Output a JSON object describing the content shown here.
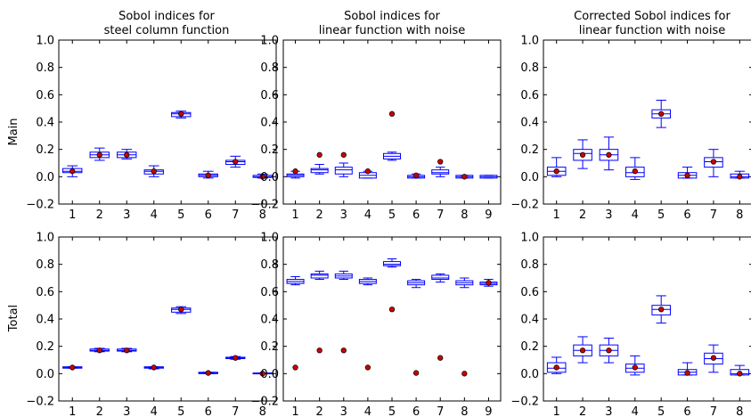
{
  "row_labels": [
    "Main",
    "Total"
  ],
  "titles": [
    [
      "Sobol indices for",
      "steel column function"
    ],
    [
      "Sobol indices for",
      "linear function with noise"
    ],
    [
      "Corrected Sobol indices for",
      "linear function with noise"
    ]
  ],
  "colors": {
    "box": "#0000ff",
    "dot": "#cc0000",
    "axis": "#000000"
  },
  "chart_data": [
    {
      "type": "box",
      "row": "Main",
      "title": "Sobol indices for steel column function",
      "ylim": [
        -0.2,
        1.0
      ],
      "yticks": [
        "−0.2",
        "0.0",
        "0.2",
        "0.4",
        "0.6",
        "0.8",
        "1.0"
      ],
      "categories": [
        "1",
        "2",
        "3",
        "4",
        "5",
        "6",
        "7",
        "8"
      ],
      "boxes": [
        {
          "q1": 0.03,
          "q3": 0.06,
          "wlo": 0.0,
          "whi": 0.08,
          "med": 0.04
        },
        {
          "q1": 0.14,
          "q3": 0.18,
          "wlo": 0.12,
          "whi": 0.21,
          "med": 0.16
        },
        {
          "q1": 0.14,
          "q3": 0.18,
          "wlo": 0.13,
          "whi": 0.2,
          "med": 0.16
        },
        {
          "q1": 0.02,
          "q3": 0.05,
          "wlo": 0.0,
          "whi": 0.08,
          "med": 0.04
        },
        {
          "q1": 0.44,
          "q3": 0.47,
          "wlo": 0.43,
          "whi": 0.48,
          "med": 0.46
        },
        {
          "q1": 0.0,
          "q3": 0.02,
          "wlo": -0.01,
          "whi": 0.04,
          "med": 0.01
        },
        {
          "q1": 0.09,
          "q3": 0.12,
          "wlo": 0.07,
          "whi": 0.15,
          "med": 0.11
        },
        {
          "q1": -0.005,
          "q3": 0.01,
          "wlo": -0.01,
          "whi": 0.02,
          "med": 0.0
        }
      ],
      "points": [
        0.04,
        0.16,
        0.16,
        0.04,
        0.46,
        0.01,
        0.11,
        0.0
      ]
    },
    {
      "type": "box",
      "row": "Main",
      "title": "Sobol indices for linear function with noise",
      "ylim": [
        -0.2,
        1.0
      ],
      "yticks": [
        "−0.2",
        "0.0",
        "0.2",
        "0.4",
        "0.6",
        "0.8",
        "1.0"
      ],
      "categories": [
        "1",
        "2",
        "3",
        "4",
        "5",
        "6",
        "7",
        "8",
        "9"
      ],
      "boxes": [
        {
          "q1": 0.0,
          "q3": 0.02,
          "wlo": -0.01,
          "whi": 0.04,
          "med": 0.01
        },
        {
          "q1": 0.03,
          "q3": 0.06,
          "wlo": 0.02,
          "whi": 0.09,
          "med": 0.05
        },
        {
          "q1": 0.02,
          "q3": 0.07,
          "wlo": 0.0,
          "whi": 0.1,
          "med": 0.05
        },
        {
          "q1": -0.01,
          "q3": 0.03,
          "wlo": -0.01,
          "whi": 0.04,
          "med": 0.01
        },
        {
          "q1": 0.13,
          "q3": 0.17,
          "wlo": 0.12,
          "whi": 0.18,
          "med": 0.15
        },
        {
          "q1": -0.01,
          "q3": 0.01,
          "wlo": -0.01,
          "whi": 0.02,
          "med": 0.0
        },
        {
          "q1": 0.02,
          "q3": 0.05,
          "wlo": 0.0,
          "whi": 0.07,
          "med": 0.03
        },
        {
          "q1": -0.01,
          "q3": 0.01,
          "wlo": -0.01,
          "whi": 0.01,
          "med": 0.0
        },
        {
          "q1": -0.01,
          "q3": 0.01,
          "wlo": -0.01,
          "whi": 0.01,
          "med": 0.0
        }
      ],
      "points": [
        0.04,
        0.16,
        0.16,
        0.04,
        0.46,
        0.01,
        0.11,
        0.0,
        null
      ]
    },
    {
      "type": "box",
      "row": "Main",
      "title": "Corrected Sobol indices for linear function with noise",
      "ylim": [
        -0.2,
        1.0
      ],
      "yticks": [
        "−0.2",
        "0.0",
        "0.2",
        "0.4",
        "0.6",
        "0.8",
        "1.0"
      ],
      "categories": [
        "1",
        "2",
        "3",
        "4",
        "5",
        "6",
        "7",
        "8"
      ],
      "boxes": [
        {
          "q1": 0.01,
          "q3": 0.07,
          "wlo": 0.0,
          "whi": 0.14,
          "med": 0.04
        },
        {
          "q1": 0.12,
          "q3": 0.2,
          "wlo": 0.06,
          "whi": 0.27,
          "med": 0.17
        },
        {
          "q1": 0.12,
          "q3": 0.2,
          "wlo": 0.05,
          "whi": 0.29,
          "med": 0.16
        },
        {
          "q1": 0.0,
          "q3": 0.07,
          "wlo": -0.02,
          "whi": 0.14,
          "med": 0.03
        },
        {
          "q1": 0.43,
          "q3": 0.49,
          "wlo": 0.36,
          "whi": 0.56,
          "med": 0.46
        },
        {
          "q1": -0.01,
          "q3": 0.03,
          "wlo": -0.01,
          "whi": 0.07,
          "med": 0.01
        },
        {
          "q1": 0.07,
          "q3": 0.14,
          "wlo": 0.0,
          "whi": 0.2,
          "med": 0.11
        },
        {
          "q1": -0.01,
          "q3": 0.02,
          "wlo": -0.01,
          "whi": 0.04,
          "med": 0.0
        }
      ],
      "points": [
        0.04,
        0.16,
        0.16,
        0.04,
        0.46,
        0.01,
        0.11,
        0.0
      ]
    },
    {
      "type": "box",
      "row": "Total",
      "title": "",
      "ylim": [
        -0.2,
        1.0
      ],
      "yticks": [
        "−0.2",
        "0.0",
        "0.2",
        "0.4",
        "0.6",
        "0.8",
        "1.0"
      ],
      "categories": [
        "1",
        "2",
        "3",
        "4",
        "5",
        "6",
        "7",
        "8"
      ],
      "boxes": [
        {
          "q1": 0.04,
          "q3": 0.05,
          "wlo": 0.04,
          "whi": 0.05,
          "med": 0.045
        },
        {
          "q1": 0.165,
          "q3": 0.18,
          "wlo": 0.16,
          "whi": 0.185,
          "med": 0.17
        },
        {
          "q1": 0.165,
          "q3": 0.18,
          "wlo": 0.16,
          "whi": 0.185,
          "med": 0.17
        },
        {
          "q1": 0.04,
          "q3": 0.05,
          "wlo": 0.035,
          "whi": 0.05,
          "med": 0.045
        },
        {
          "q1": 0.45,
          "q3": 0.48,
          "wlo": 0.44,
          "whi": 0.49,
          "med": 0.47
        },
        {
          "q1": 0.0,
          "q3": 0.01,
          "wlo": 0.0,
          "whi": 0.01,
          "med": 0.005
        },
        {
          "q1": 0.11,
          "q3": 0.12,
          "wlo": 0.105,
          "whi": 0.125,
          "med": 0.115
        },
        {
          "q1": 0.0,
          "q3": 0.005,
          "wlo": 0.0,
          "whi": 0.005,
          "med": 0.0
        }
      ],
      "points": [
        0.045,
        0.17,
        0.17,
        0.045,
        0.47,
        0.005,
        0.115,
        0.0
      ]
    },
    {
      "type": "box",
      "row": "Total",
      "title": "",
      "ylim": [
        -0.2,
        1.0
      ],
      "yticks": [
        "−0.2",
        "0.0",
        "0.2",
        "0.4",
        "0.6",
        "0.8",
        "1.0"
      ],
      "categories": [
        "1",
        "2",
        "3",
        "4",
        "5",
        "6",
        "7",
        "8",
        "9"
      ],
      "boxes": [
        {
          "q1": 0.66,
          "q3": 0.69,
          "wlo": 0.65,
          "whi": 0.71,
          "med": 0.675
        },
        {
          "q1": 0.7,
          "q3": 0.73,
          "wlo": 0.69,
          "whi": 0.75,
          "med": 0.72
        },
        {
          "q1": 0.7,
          "q3": 0.73,
          "wlo": 0.69,
          "whi": 0.75,
          "med": 0.715
        },
        {
          "q1": 0.66,
          "q3": 0.69,
          "wlo": 0.65,
          "whi": 0.7,
          "med": 0.675
        },
        {
          "q1": 0.79,
          "q3": 0.82,
          "wlo": 0.78,
          "whi": 0.84,
          "med": 0.8
        },
        {
          "q1": 0.65,
          "q3": 0.68,
          "wlo": 0.63,
          "whi": 0.69,
          "med": 0.665
        },
        {
          "q1": 0.69,
          "q3": 0.72,
          "wlo": 0.67,
          "whi": 0.73,
          "med": 0.7
        },
        {
          "q1": 0.65,
          "q3": 0.68,
          "wlo": 0.63,
          "whi": 0.7,
          "med": 0.665
        },
        {
          "q1": 0.65,
          "q3": 0.67,
          "wlo": 0.64,
          "whi": 0.69,
          "med": 0.66
        }
      ],
      "points": [
        0.045,
        0.17,
        0.17,
        0.045,
        0.47,
        0.005,
        0.115,
        0.0,
        0.665
      ]
    },
    {
      "type": "box",
      "row": "Total",
      "title": "",
      "ylim": [
        -0.2,
        1.0
      ],
      "yticks": [
        "−0.2",
        "0.0",
        "0.2",
        "0.4",
        "0.6",
        "0.8",
        "1.0"
      ],
      "categories": [
        "1",
        "2",
        "3",
        "4",
        "5",
        "6",
        "7",
        "8"
      ],
      "boxes": [
        {
          "q1": 0.01,
          "q3": 0.08,
          "wlo": 0.0,
          "whi": 0.12,
          "med": 0.04
        },
        {
          "q1": 0.13,
          "q3": 0.21,
          "wlo": 0.08,
          "whi": 0.27,
          "med": 0.17
        },
        {
          "q1": 0.13,
          "q3": 0.21,
          "wlo": 0.08,
          "whi": 0.26,
          "med": 0.17
        },
        {
          "q1": 0.01,
          "q3": 0.07,
          "wlo": -0.01,
          "whi": 0.13,
          "med": 0.04
        },
        {
          "q1": 0.43,
          "q3": 0.5,
          "wlo": 0.37,
          "whi": 0.57,
          "med": 0.47
        },
        {
          "q1": -0.01,
          "q3": 0.03,
          "wlo": -0.01,
          "whi": 0.08,
          "med": 0.01
        },
        {
          "q1": 0.07,
          "q3": 0.15,
          "wlo": 0.01,
          "whi": 0.21,
          "med": 0.11
        },
        {
          "q1": -0.01,
          "q3": 0.03,
          "wlo": -0.01,
          "whi": 0.06,
          "med": 0.0
        }
      ],
      "points": [
        0.045,
        0.17,
        0.17,
        0.045,
        0.47,
        0.005,
        0.115,
        0.0
      ]
    }
  ]
}
